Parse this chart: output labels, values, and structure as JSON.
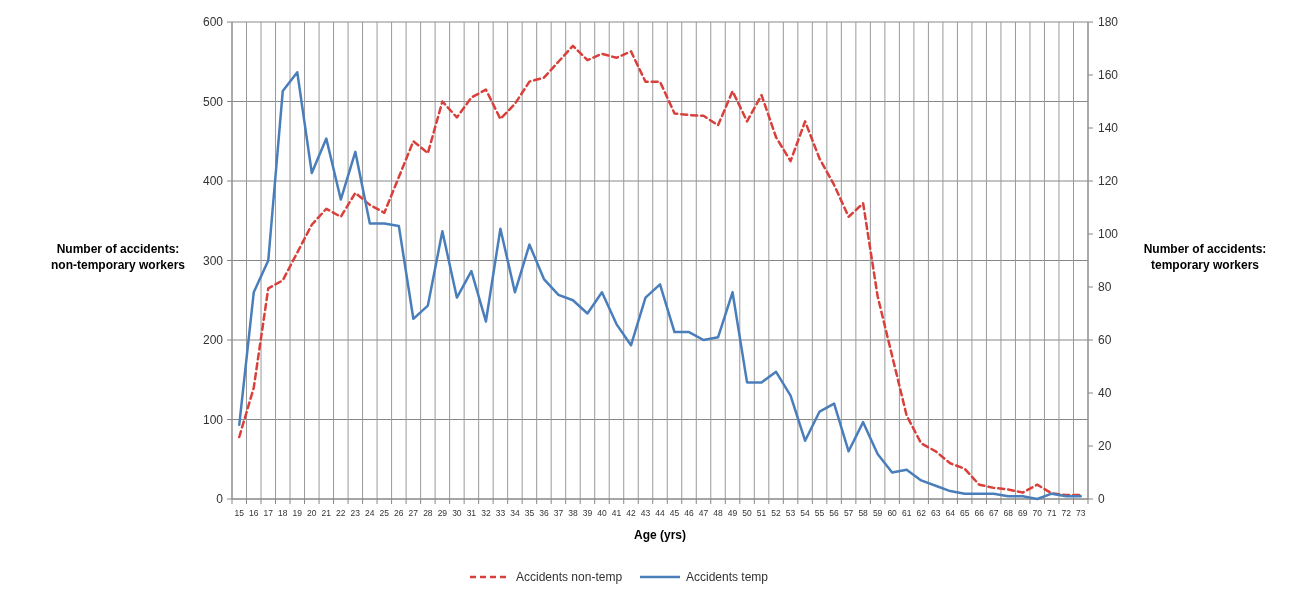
{
  "chart_data": {
    "type": "line",
    "xlabel": "Age (yrs)",
    "ylabel": "Number of accidents: non-temporary workers",
    "y2label": "Number of accidents: temporary workers",
    "categories": [
      "15",
      "16",
      "17",
      "18",
      "19",
      "20",
      "21",
      "22",
      "23",
      "24",
      "25",
      "26",
      "27",
      "28",
      "29",
      "30",
      "31",
      "32",
      "33",
      "34",
      "35",
      "36",
      "37",
      "38",
      "39",
      "40",
      "41",
      "42",
      "43",
      "44",
      "45",
      "46",
      "47",
      "48",
      "49",
      "50",
      "51",
      "52",
      "53",
      "54",
      "55",
      "56",
      "57",
      "58",
      "59",
      "60",
      "61",
      "62",
      "63",
      "64",
      "65",
      "66",
      "67",
      "68",
      "69",
      "70",
      "71",
      "72",
      "73"
    ],
    "series": [
      {
        "name": "Accidents non-temp",
        "color": "#d9403b",
        "line_style": "dashed",
        "values": [
          78,
          140,
          265,
          275,
          310,
          345,
          365,
          355,
          385,
          370,
          360,
          405,
          450,
          435,
          500,
          480,
          505,
          515,
          478,
          497,
          525,
          530,
          550,
          570,
          552,
          560,
          555,
          563,
          525,
          525,
          485,
          483,
          482,
          470,
          513,
          475,
          508,
          455,
          425,
          475,
          428,
          395,
          355,
          372,
          255,
          180,
          105,
          70,
          60,
          45,
          38,
          18,
          14,
          12,
          8,
          18,
          7,
          5,
          5
        ]
      },
      {
        "name": "Accidents temp",
        "color": "#4a7ebb",
        "axis": "y2",
        "line_style": "solid",
        "values": [
          28,
          78,
          90,
          154,
          161,
          123,
          136,
          113,
          131,
          104,
          104,
          103,
          68,
          73,
          101,
          76,
          86,
          67,
          102,
          78,
          96,
          83,
          77,
          75,
          70,
          78,
          66,
          58,
          76,
          81,
          63,
          63,
          60,
          61,
          78,
          44,
          44,
          48,
          39,
          22,
          33,
          36,
          18,
          29,
          17,
          10,
          11,
          7,
          5,
          3,
          2,
          2,
          2,
          1,
          1,
          0,
          2,
          1,
          1
        ]
      }
    ],
    "ylim": [
      0,
      600
    ],
    "yticks": [
      0,
      100,
      200,
      300,
      400,
      500,
      600
    ],
    "y2lim": [
      0,
      180
    ],
    "y2ticks": [
      0,
      20,
      40,
      60,
      80,
      100,
      120,
      140,
      160,
      180
    ],
    "grid": true,
    "legend": "bottom"
  }
}
